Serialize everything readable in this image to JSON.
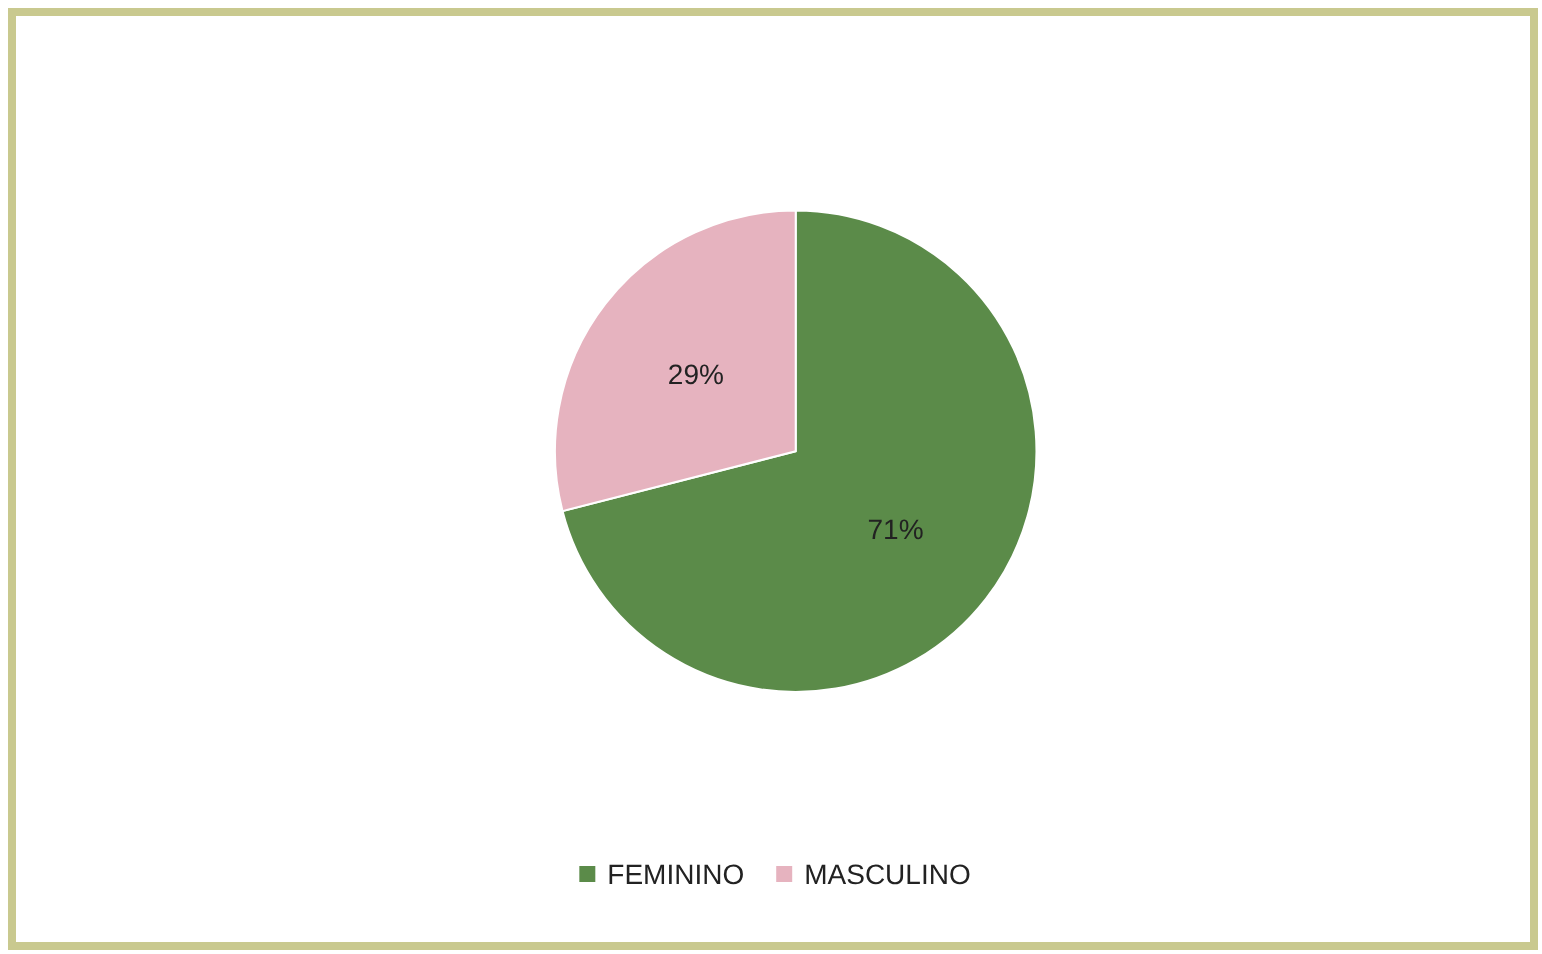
{
  "chart_data": {
    "type": "pie",
    "categories": [
      "FEMININO",
      "MASCULINO"
    ],
    "values": [
      71,
      29
    ],
    "colors": [
      "#5b8b49",
      "#e6b3bf"
    ],
    "value_labels": [
      "71%",
      "29%"
    ],
    "legend": "bottom"
  }
}
